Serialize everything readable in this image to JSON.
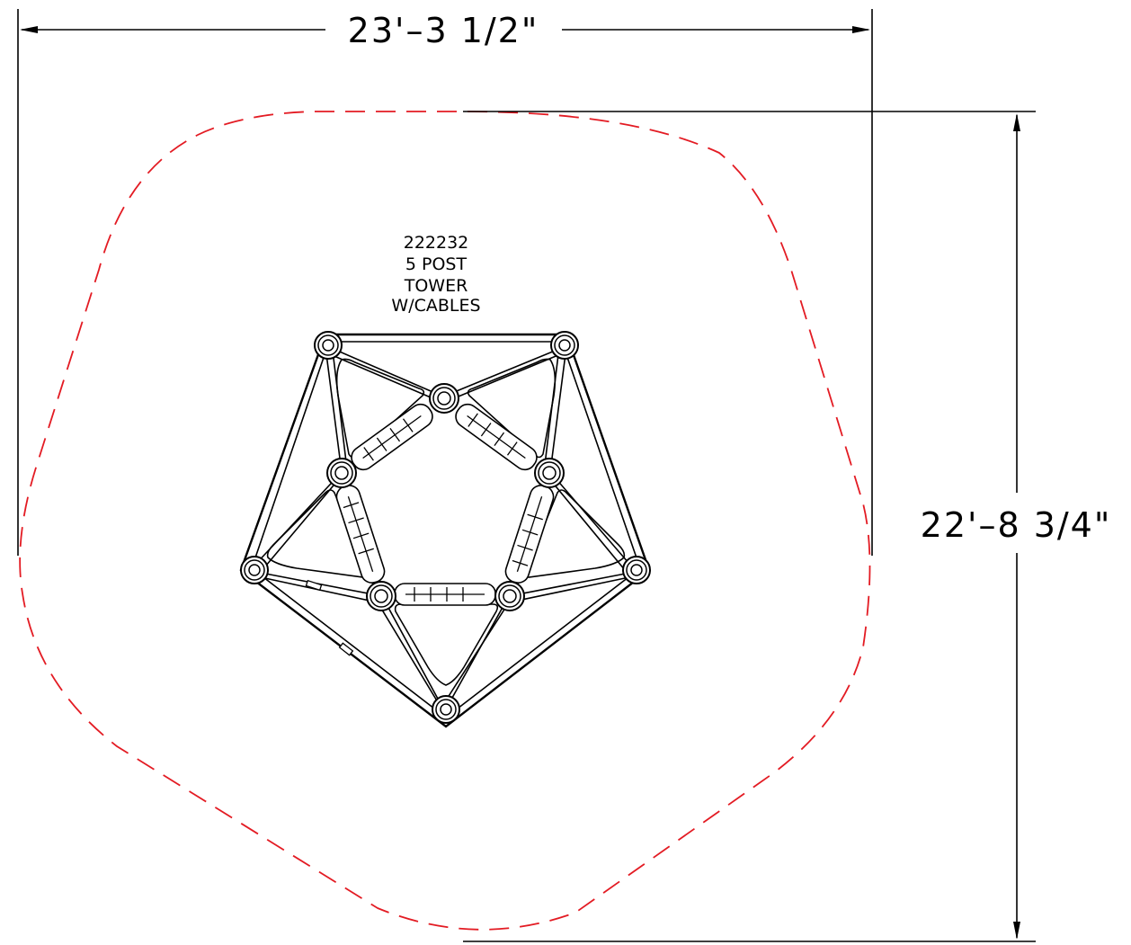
{
  "dimensions": {
    "width_label": "23'–3  1/2\"",
    "depth_label": "22'–8  3/4\""
  },
  "product": {
    "number": "222232",
    "line1": "5 POST",
    "line2": "TOWER",
    "line3": "W/CABLES"
  },
  "colors": {
    "linework": "#000000",
    "use_zone": "#e31b23",
    "background": "#ffffff"
  }
}
